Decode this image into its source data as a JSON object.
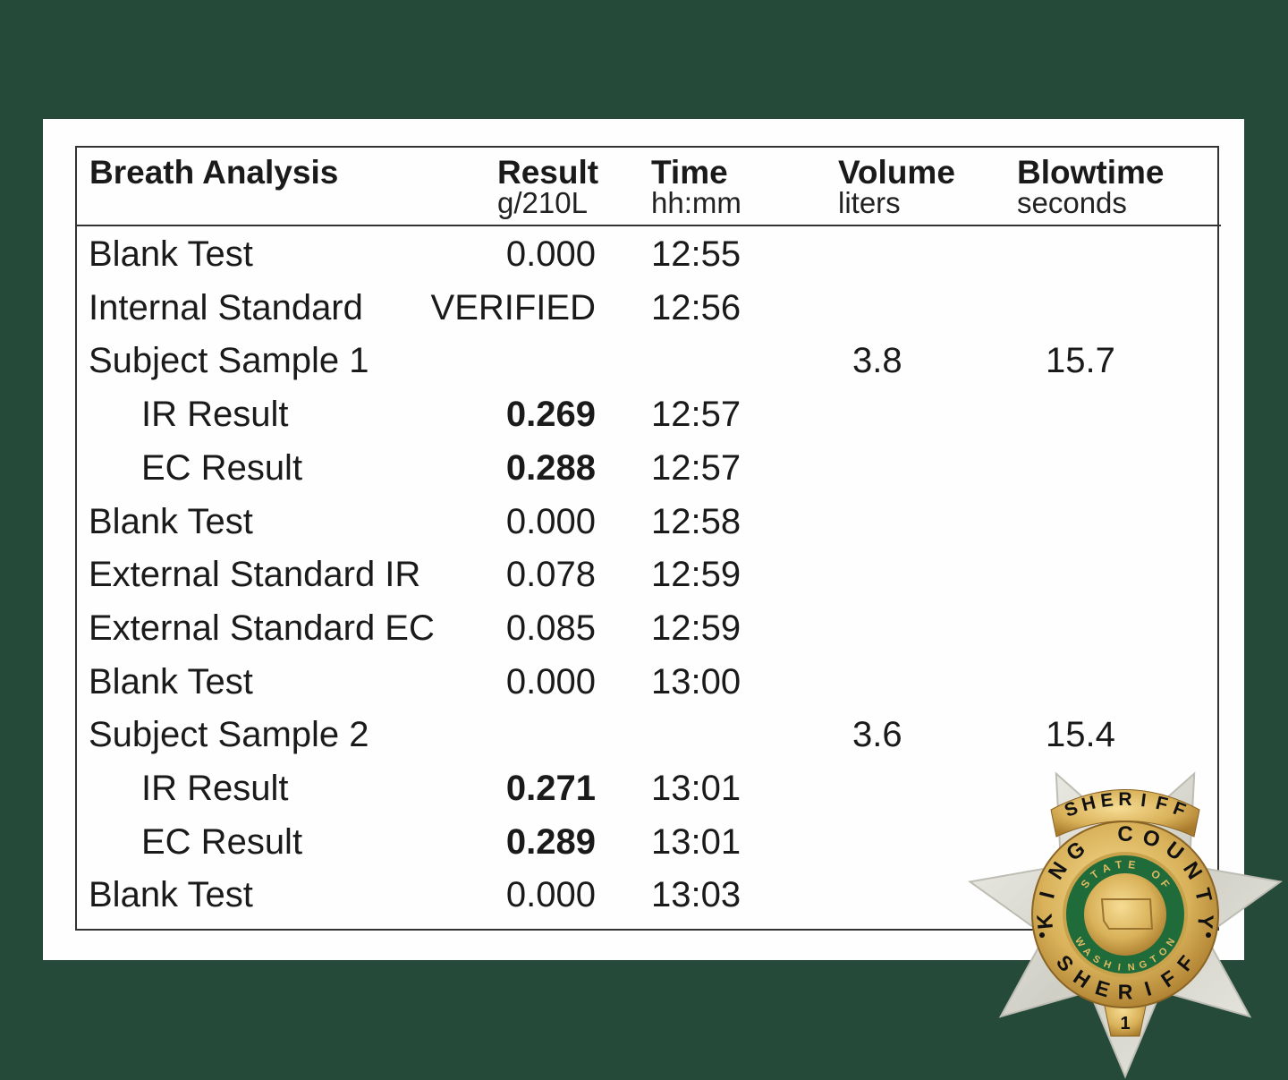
{
  "table": {
    "headers": [
      {
        "title": "Breath Analysis",
        "unit": ""
      },
      {
        "title": "Result",
        "unit": "g/210L"
      },
      {
        "title": "Time",
        "unit": "hh:mm"
      },
      {
        "title": "Volume",
        "unit": "liters"
      },
      {
        "title": "Blowtime",
        "unit": "seconds"
      }
    ],
    "rows": [
      {
        "label": "Blank Test",
        "result": "0.000",
        "time": "12:55",
        "volume": "",
        "blowtime": ""
      },
      {
        "label": "Internal Standard",
        "result": "VERIFIED",
        "time": "12:56",
        "volume": "",
        "blowtime": ""
      },
      {
        "label": "Subject Sample 1",
        "result": "",
        "time": "",
        "volume": "3.8",
        "blowtime": "15.7"
      },
      {
        "label": "IR Result",
        "result": "0.269",
        "time": "12:57",
        "volume": "",
        "blowtime": ""
      },
      {
        "label": "EC Result",
        "result": "0.288",
        "time": "12:57",
        "volume": "",
        "blowtime": ""
      },
      {
        "label": "Blank Test",
        "result": "0.000",
        "time": "12:58",
        "volume": "",
        "blowtime": ""
      },
      {
        "label": "External Standard IR",
        "result": "0.078",
        "time": "12:59",
        "volume": "",
        "blowtime": ""
      },
      {
        "label": "External Standard EC",
        "result": "0.085",
        "time": "12:59",
        "volume": "",
        "blowtime": ""
      },
      {
        "label": "Blank Test",
        "result": "0.000",
        "time": "13:00",
        "volume": "",
        "blowtime": ""
      },
      {
        "label": "Subject Sample 2",
        "result": "",
        "time": "",
        "volume": "3.6",
        "blowtime": "15.4"
      },
      {
        "label": "IR Result",
        "result": "0.271",
        "time": "13:01",
        "volume": "",
        "blowtime": ""
      },
      {
        "label": "EC Result",
        "result": "0.289",
        "time": "13:01",
        "volume": "",
        "blowtime": ""
      },
      {
        "label": "Blank Test",
        "result": "0.000",
        "time": "13:03",
        "volume": "",
        "blowtime": ""
      }
    ]
  },
  "badge": {
    "top_banner": "SHERIFF",
    "ring_text": "KING COUNTY",
    "inner_top": "STATE OF",
    "inner_bottom": "WASHINGTON",
    "bottom_text": "SHERIFF",
    "number": "1"
  },
  "colors": {
    "background": "#254a3a",
    "paper": "#fefefe",
    "badge_gold": "#d9b25a",
    "badge_green": "#1f6b3a",
    "badge_silver": "#d8d8d0"
  }
}
